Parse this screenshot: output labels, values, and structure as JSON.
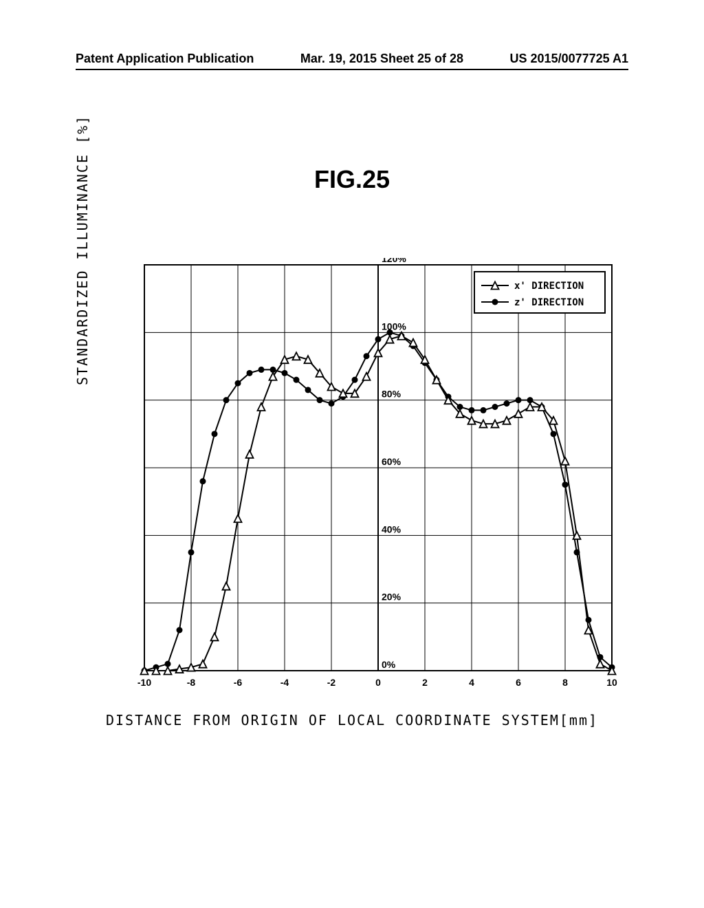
{
  "header": {
    "left": "Patent Application Publication",
    "center": "Mar. 19, 2015  Sheet 25 of 28",
    "right": "US 2015/0077725 A1"
  },
  "figure_title": "FIG.25",
  "chart": {
    "type": "line",
    "ylabel": "STANDARDIZED ILLUMINANCE [%]",
    "xlabel": "DISTANCE FROM ORIGIN OF LOCAL COORDINATE SYSTEM[mm]",
    "xlim": [
      -10,
      10
    ],
    "ylim": [
      0,
      120
    ],
    "xticks": [
      -10,
      -8,
      -6,
      -4,
      -2,
      0,
      2,
      4,
      6,
      8,
      10
    ],
    "yticks": [
      0,
      20,
      40,
      60,
      80,
      100,
      120
    ],
    "ytick_labels": [
      "0%",
      "20%",
      "40%",
      "60%",
      "80%",
      "100%",
      "120%"
    ],
    "grid_color": "#000000",
    "background_color": "#ffffff",
    "line_color": "#000000",
    "line_width": 2,
    "legend": {
      "items": [
        {
          "marker": "triangle",
          "label": "x' DIRECTION"
        },
        {
          "marker": "circle",
          "label": "z' DIRECTION"
        }
      ]
    },
    "series_x": {
      "x": [
        -10,
        -9.5,
        -9,
        -8.5,
        -8,
        -7.5,
        -7,
        -6.5,
        -6,
        -5.5,
        -5,
        -4.5,
        -4,
        -3.5,
        -3,
        -2.5,
        -2,
        -1.5,
        -1,
        -0.5,
        0,
        0.5,
        1,
        1.5,
        2,
        2.5,
        3,
        3.5,
        4,
        4.5,
        5,
        5.5,
        6,
        6.5,
        7,
        7.5,
        8,
        8.5,
        9,
        9.5,
        10
      ],
      "y": [
        0,
        0,
        0,
        0.5,
        1,
        2,
        10,
        25,
        45,
        64,
        78,
        87,
        92,
        93,
        92,
        88,
        84,
        82,
        82,
        87,
        94,
        98,
        99,
        97,
        92,
        86,
        80,
        76,
        74,
        73,
        73,
        74,
        76,
        78,
        78,
        74,
        62,
        40,
        12,
        2,
        0
      ]
    },
    "series_z": {
      "x": [
        -10,
        -9.5,
        -9,
        -8.5,
        -8,
        -7.5,
        -7,
        -6.5,
        -6,
        -5.5,
        -5,
        -4.5,
        -4,
        -3.5,
        -3,
        -2.5,
        -2,
        -1.5,
        -1,
        -0.5,
        0,
        0.5,
        1,
        1.5,
        2,
        2.5,
        3,
        3.5,
        4,
        4.5,
        5,
        5.5,
        6,
        6.5,
        7,
        7.5,
        8,
        8.5,
        9,
        9.5,
        10
      ],
      "y": [
        0,
        1,
        2,
        12,
        35,
        56,
        70,
        80,
        85,
        88,
        89,
        89,
        88,
        86,
        83,
        80,
        79,
        81,
        86,
        93,
        98,
        100,
        99,
        96,
        91,
        86,
        81,
        78,
        77,
        77,
        78,
        79,
        80,
        80,
        78,
        70,
        55,
        35,
        15,
        4,
        1
      ]
    }
  }
}
